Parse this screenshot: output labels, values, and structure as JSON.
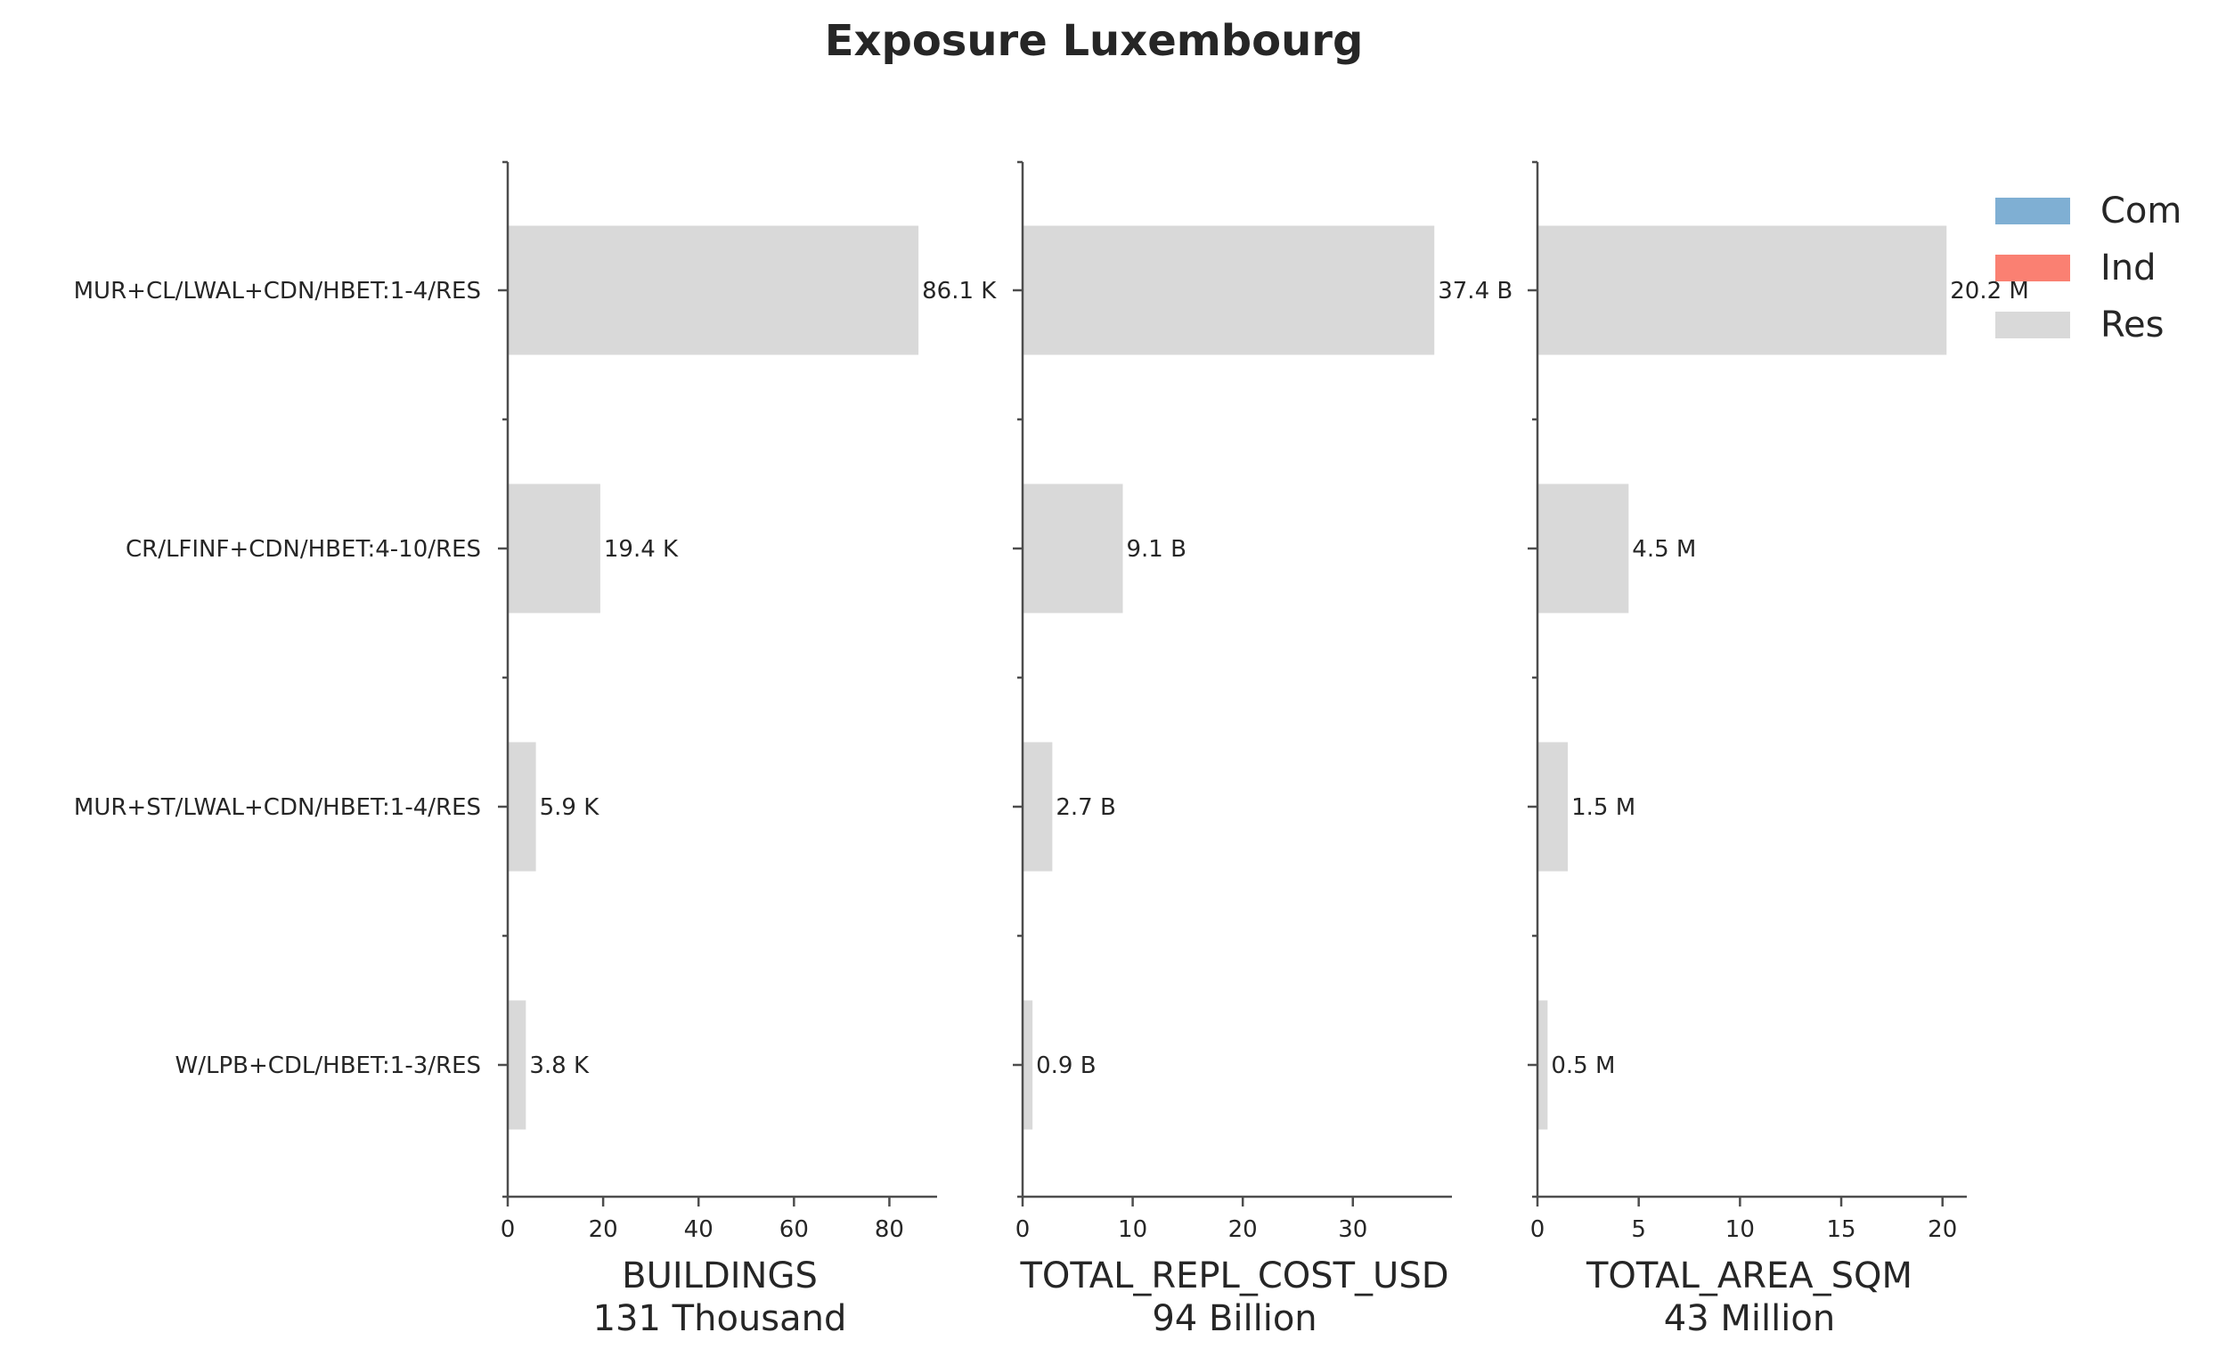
{
  "title": "Exposure Luxembourg",
  "chart_data": [
    {
      "type": "bar",
      "orientation": "horizontal",
      "categories": [
        "MUR+CL/LWAL+CDN/HBET:1-4/RES",
        "CR/LFINF+CDN/HBET:4-10/RES",
        "MUR+ST/LWAL+CDN/HBET:1-4/RES",
        "W/LPB+CDL/HBET:1-3/RES"
      ],
      "series": [
        {
          "name": "Res",
          "color": "#d9d9d9",
          "values": [
            86.1,
            19.4,
            5.9,
            3.8
          ],
          "labels": [
            "86.1 K",
            "19.4 K",
            "5.9 K",
            "3.8 K"
          ]
        }
      ],
      "xlabel": "BUILDINGS",
      "subtitle": "131 Thousand",
      "xlim": [
        0,
        90
      ],
      "xticks": [
        0,
        20,
        40,
        60,
        80
      ],
      "xtick_labels": [
        "0",
        "20",
        "40",
        "60",
        "80"
      ],
      "grid": false
    },
    {
      "type": "bar",
      "orientation": "horizontal",
      "categories": [
        "MUR+CL/LWAL+CDN/HBET:1-4/RES",
        "CR/LFINF+CDN/HBET:4-10/RES",
        "MUR+ST/LWAL+CDN/HBET:1-4/RES",
        "W/LPB+CDL/HBET:1-3/RES"
      ],
      "series": [
        {
          "name": "Res",
          "color": "#d9d9d9",
          "values": [
            37.4,
            9.1,
            2.7,
            0.9
          ],
          "labels": [
            "37.4 B",
            "9.1 B",
            "2.7 B",
            "0.9 B"
          ]
        }
      ],
      "xlabel": "TOTAL_REPL_COST_USD",
      "subtitle": "94 Billion",
      "xlim": [
        0,
        39
      ],
      "xticks": [
        0,
        10,
        20,
        30
      ],
      "xtick_labels": [
        "0",
        "10",
        "20",
        "30"
      ],
      "grid": false
    },
    {
      "type": "bar",
      "orientation": "horizontal",
      "categories": [
        "MUR+CL/LWAL+CDN/HBET:1-4/RES",
        "CR/LFINF+CDN/HBET:4-10/RES",
        "MUR+ST/LWAL+CDN/HBET:1-4/RES",
        "W/LPB+CDL/HBET:1-3/RES"
      ],
      "series": [
        {
          "name": "Res",
          "color": "#d9d9d9",
          "values": [
            20.2,
            4.5,
            1.5,
            0.5
          ],
          "labels": [
            "20.2 M",
            "4.5 M",
            "1.5 M",
            "0.5 M"
          ]
        }
      ],
      "xlabel": "TOTAL_AREA_SQM",
      "subtitle": "43 Million",
      "xlim": [
        0,
        21.2
      ],
      "xticks": [
        0,
        5,
        10,
        15,
        20
      ],
      "xtick_labels": [
        "0",
        "5",
        "10",
        "15",
        "20"
      ],
      "grid": false
    }
  ],
  "legend": {
    "placement": "top-right",
    "entries": [
      {
        "label": "Com",
        "color": "#7fafd3"
      },
      {
        "label": "Ind",
        "color": "#fa8072"
      },
      {
        "label": "Res",
        "color": "#d9d9d9"
      }
    ]
  }
}
